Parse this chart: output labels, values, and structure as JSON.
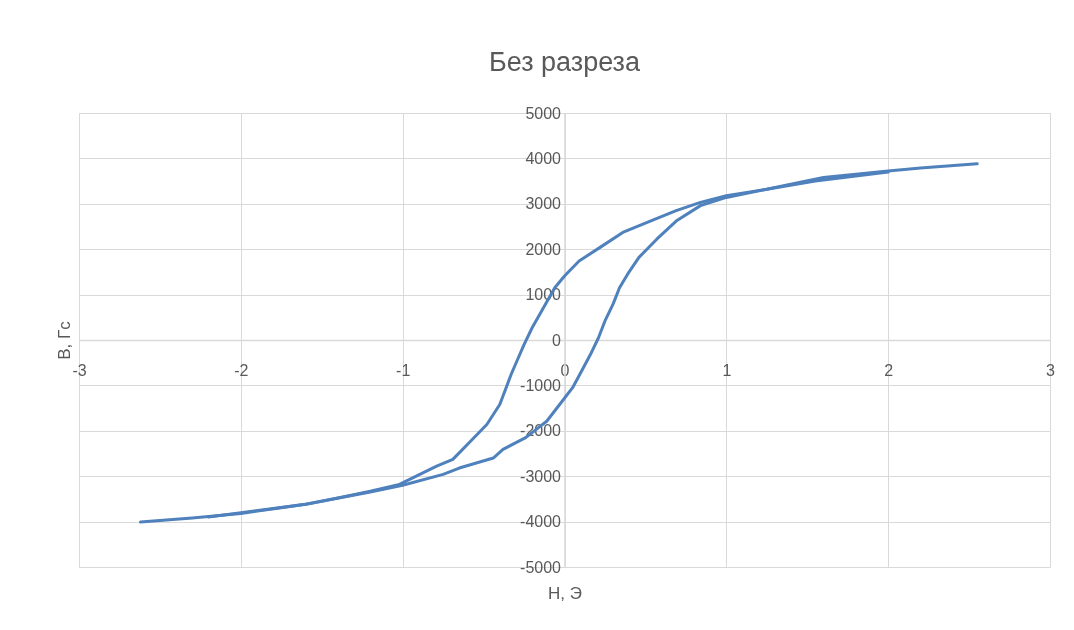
{
  "chart_data": {
    "type": "line",
    "title": "Без разреза",
    "xlabel": "H, Э",
    "ylabel": "B, Гс",
    "xlim": [
      -3,
      3
    ],
    "xticks": [
      -3,
      -2,
      -1,
      0,
      1,
      2,
      3
    ],
    "ylim": [
      -5000,
      5000
    ],
    "yticks": [
      -5000,
      -4000,
      -3000,
      -2000,
      -1000,
      0,
      1000,
      2000,
      3000,
      4000,
      5000
    ],
    "grid": true,
    "marker": "none",
    "line_style": "solid",
    "series": [
      {
        "color": "#4f81bd",
        "x": [
          -2.62,
          -2.3,
          -2.0,
          -1.6,
          -1.4,
          -1.2,
          -1.02,
          -0.79,
          -0.69,
          -0.57,
          -0.48,
          -0.4,
          -0.33,
          -0.29,
          -0.25,
          -0.2,
          -0.13,
          -0.06,
          0.0,
          0.09,
          0.22,
          0.36,
          0.53,
          0.69,
          0.84,
          1.0,
          1.25,
          1.45,
          1.6,
          1.8,
          2.0,
          2.2,
          2.55
        ],
        "values": [
          -4010,
          -3920,
          -3820,
          -3620,
          -3480,
          -3330,
          -3180,
          -2780,
          -2630,
          -2190,
          -1860,
          -1420,
          -760,
          -430,
          -100,
          270,
          710,
          1150,
          1410,
          1740,
          2040,
          2370,
          2620,
          2850,
          3030,
          3180,
          3320,
          3470,
          3580,
          3650,
          3720,
          3790,
          3880
        ]
      },
      {
        "color": "#4f81bd",
        "x": [
          -2.2,
          -1.6,
          -1.2,
          -1.0,
          -0.75,
          -0.65,
          -0.44,
          -0.38,
          -0.24,
          -0.11,
          -0.03,
          0.05,
          0.1,
          0.16,
          0.21,
          0.25,
          0.3,
          0.34,
          0.39,
          0.46,
          0.57,
          0.69,
          0.84,
          1.0,
          1.25,
          1.55,
          2.0
        ],
        "values": [
          -3900,
          -3620,
          -3350,
          -3200,
          -2960,
          -2820,
          -2600,
          -2410,
          -2150,
          -1790,
          -1420,
          -1050,
          -720,
          -320,
          50,
          420,
          790,
          1150,
          1450,
          1820,
          2220,
          2620,
          2960,
          3140,
          3320,
          3500,
          3700
        ]
      }
    ]
  }
}
